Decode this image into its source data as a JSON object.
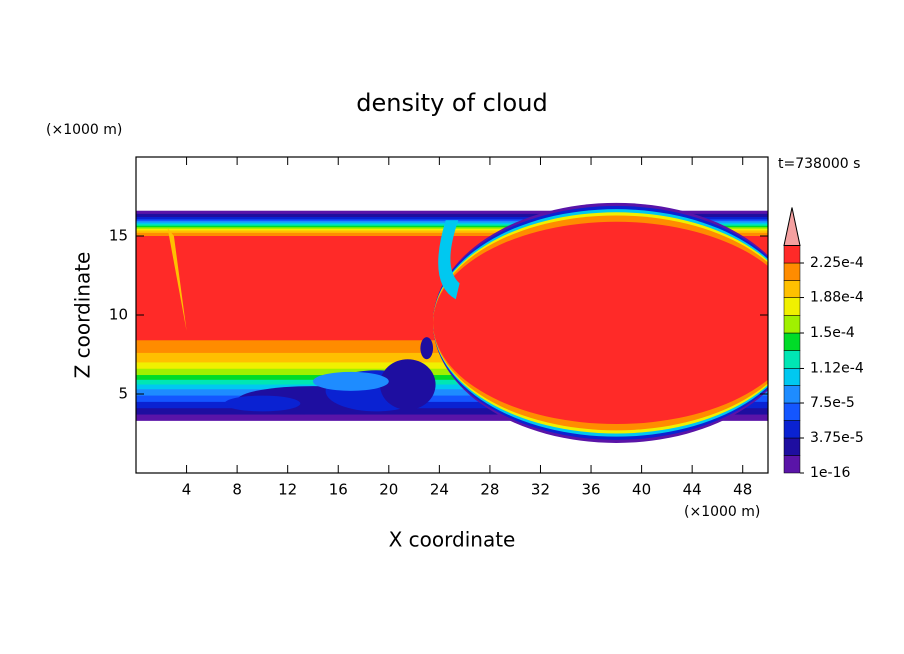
{
  "chart_data": {
    "type": "contour",
    "title": "density of cloud",
    "x_label": "X coordinate",
    "y_label": "Z coordinate",
    "x_unit": "(×1000 m)",
    "y_unit": "(×1000 m)",
    "time_label": "t=738000 s",
    "xlim": [
      0,
      50
    ],
    "ylim": [
      0,
      20
    ],
    "xticks": [
      4,
      8,
      12,
      16,
      20,
      24,
      28,
      32,
      36,
      40,
      44,
      48
    ],
    "yticks": [
      5,
      10,
      15
    ],
    "colorbar": {
      "levels": [
        1e-16,
        1.875e-05,
        3.75e-05,
        5.625e-05,
        7.5e-05,
        9.375e-05,
        0.000112,
        0.00013125,
        0.00015,
        0.00016875,
        0.000188,
        0.00020625,
        0.000225,
        0.00024375
      ],
      "colors": [
        "#5a14a8",
        "#1e0ea0",
        "#0a22d2",
        "#1456ff",
        "#1e8cff",
        "#00c8f0",
        "#00e6b4",
        "#00dc28",
        "#a0f000",
        "#f0f000",
        "#ffc000",
        "#ff8c00",
        "#ff2a28"
      ],
      "extend_color": "#f4a0a0",
      "ticks": [
        {
          "value": 1e-16,
          "label": "1e-16"
        },
        {
          "value": 3.75e-05,
          "label": "3.75e-5"
        },
        {
          "value": 7.5e-05,
          "label": "7.5e-5"
        },
        {
          "value": 0.000112,
          "label": "1.12e-4"
        },
        {
          "value": 0.00015,
          "label": "1.5e-4"
        },
        {
          "value": 0.000188,
          "label": "1.88e-4"
        },
        {
          "value": 0.000225,
          "label": "2.25e-4"
        }
      ]
    }
  }
}
